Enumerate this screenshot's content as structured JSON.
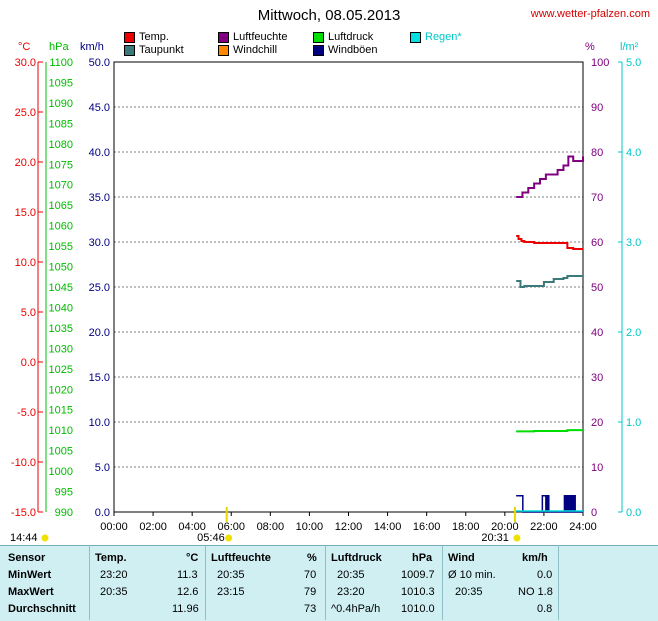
{
  "title": "Mittwoch, 08.05.2013",
  "website": "www.wetter-pfalzen.com",
  "legend": [
    {
      "label": "Temp.",
      "color": "#ee0000"
    },
    {
      "label": "Taupunkt",
      "color": "#3a7a7a"
    },
    {
      "label": "Luftfeuchte",
      "color": "#800080"
    },
    {
      "label": "Windchill",
      "color": "#ff8800"
    },
    {
      "label": "Luftdruck",
      "color": "#00dd00"
    },
    {
      "label": "Windböen",
      "color": "#000080"
    },
    {
      "label": "Regen*",
      "color": "#00e0e0"
    }
  ],
  "axes": {
    "temp": {
      "unit": "°C",
      "color": "#ee0000",
      "ticks": [
        "30.0",
        "25.0",
        "20.0",
        "15.0",
        "10.0",
        "5.0",
        "0.0",
        "-5.0",
        "-10.0",
        "-15.0"
      ]
    },
    "pressure": {
      "unit": "hPa",
      "color": "#00bb00",
      "ticks": [
        "1100",
        "1095",
        "1090",
        "1085",
        "1080",
        "1075",
        "1070",
        "1065",
        "1060",
        "1055",
        "1050",
        "1045",
        "1040",
        "1035",
        "1030",
        "1025",
        "1020",
        "1015",
        "1010",
        "1005",
        "1000",
        "995",
        "990"
      ]
    },
    "wind": {
      "unit": "km/h",
      "color": "#000080",
      "ticks": [
        "50.0",
        "45.0",
        "40.0",
        "35.0",
        "30.0",
        "25.0",
        "20.0",
        "15.0",
        "10.0",
        "5.0",
        "0.0"
      ]
    },
    "humidity": {
      "unit": "%",
      "color": "#800080",
      "ticks": [
        "100",
        "90",
        "80",
        "70",
        "60",
        "50",
        "40",
        "30",
        "20",
        "10",
        "0"
      ]
    },
    "rain": {
      "unit": "l/m²",
      "color": "#00c8c8",
      "ticks": [
        "5.0",
        "4.0",
        "3.0",
        "2.0",
        "1.0",
        "0.0"
      ]
    },
    "time": {
      "ticks": [
        "00:00",
        "02:00",
        "04:00",
        "06:00",
        "08:00",
        "10:00",
        "12:00",
        "14:00",
        "16:00",
        "18:00",
        "20:00",
        "22:00",
        "24:00"
      ]
    }
  },
  "sun_markers": {
    "sunrise": "05:46",
    "sunset": "20:31",
    "daylight": "14:44"
  },
  "chart_data": {
    "type": "line",
    "x_unit": "hour of day",
    "xlim": [
      0,
      24
    ],
    "series": [
      {
        "name": "Temp.",
        "axis": "temp",
        "color": "#ee0000",
        "x": [
          20.58,
          20.7,
          20.85,
          21.0,
          21.2,
          21.5,
          22.0,
          22.5,
          23.0,
          23.2,
          23.5,
          24.0
        ],
        "y": [
          12.6,
          12.3,
          12.1,
          12.0,
          12.0,
          11.9,
          11.9,
          11.9,
          11.9,
          11.4,
          11.3,
          11.3
        ]
      },
      {
        "name": "Taupunkt",
        "axis": "temp",
        "color": "#3a7a7a",
        "x": [
          20.58,
          20.8,
          21.0,
          21.5,
          22.0,
          22.5,
          23.0,
          23.2,
          23.5,
          24.0
        ],
        "y": [
          8.1,
          7.5,
          7.6,
          7.6,
          8.0,
          8.3,
          8.4,
          8.6,
          8.6,
          8.6
        ]
      },
      {
        "name": "Luftfeuchte",
        "axis": "humidity",
        "color": "#800080",
        "x": [
          20.58,
          20.9,
          21.2,
          21.5,
          21.8,
          22.1,
          22.4,
          22.7,
          23.0,
          23.25,
          23.5,
          23.8,
          24.0
        ],
        "y": [
          70,
          71,
          72,
          73,
          74,
          75,
          75,
          76,
          77,
          79,
          78,
          78,
          79
        ]
      },
      {
        "name": "Luftdruck",
        "axis": "pressure",
        "color": "#00dd00",
        "x": [
          20.58,
          21.5,
          22.5,
          23.2,
          23.5,
          24.0
        ],
        "y": [
          1009.7,
          1009.8,
          1009.8,
          1010.0,
          1010.0,
          1010.2
        ]
      },
      {
        "name": "Windböen",
        "axis": "wind",
        "color": "#000080",
        "x": [
          20.58,
          20.9,
          20.92,
          21.9,
          21.92,
          22.1,
          22.12,
          22.15,
          22.2,
          22.25,
          22.3,
          23.0,
          23.05,
          23.1,
          23.15,
          23.2,
          23.25,
          23.3,
          23.35,
          23.4,
          23.45,
          23.5,
          23.55,
          23.6,
          23.65,
          24.0
        ],
        "y": [
          1.8,
          1.8,
          0,
          0,
          1.8,
          0,
          1.8,
          0,
          1.8,
          0,
          0,
          0,
          1.8,
          0,
          1.8,
          0,
          1.8,
          0,
          1.8,
          0,
          1.8,
          0,
          1.8,
          0,
          0,
          0
        ]
      }
    ]
  },
  "table": {
    "headers": {
      "sensor": "Sensor",
      "temp": "Temp.",
      "temp_unit": "°C",
      "hum": "Luftfeuchte",
      "hum_unit": "%",
      "press": "Luftdruck",
      "press_unit": "hPa",
      "wind": "Wind",
      "wind_unit": "km/h"
    },
    "rows": [
      {
        "label": "MinWert",
        "temp_time": "23:20",
        "temp": "11.3",
        "hum_time": "20:35",
        "hum": "70",
        "press_time": "20:35",
        "press": "1009.7",
        "wind_time": "Ø 10 min.",
        "wind": "0.0"
      },
      {
        "label": "MaxWert",
        "temp_time": "20:35",
        "temp": "12.6",
        "hum_time": "23:15",
        "hum": "79",
        "press_time": "23:20",
        "press": "1010.3",
        "wind_time": "20:35",
        "wind": "NO 1.8"
      },
      {
        "label": "Durchschnitt",
        "temp_time": "",
        "temp": "11.96",
        "hum_time": "",
        "hum": "73",
        "press_time": "^0.4hPa/h",
        "press": "1010.0",
        "wind_time": "",
        "wind": "0.8"
      }
    ]
  }
}
